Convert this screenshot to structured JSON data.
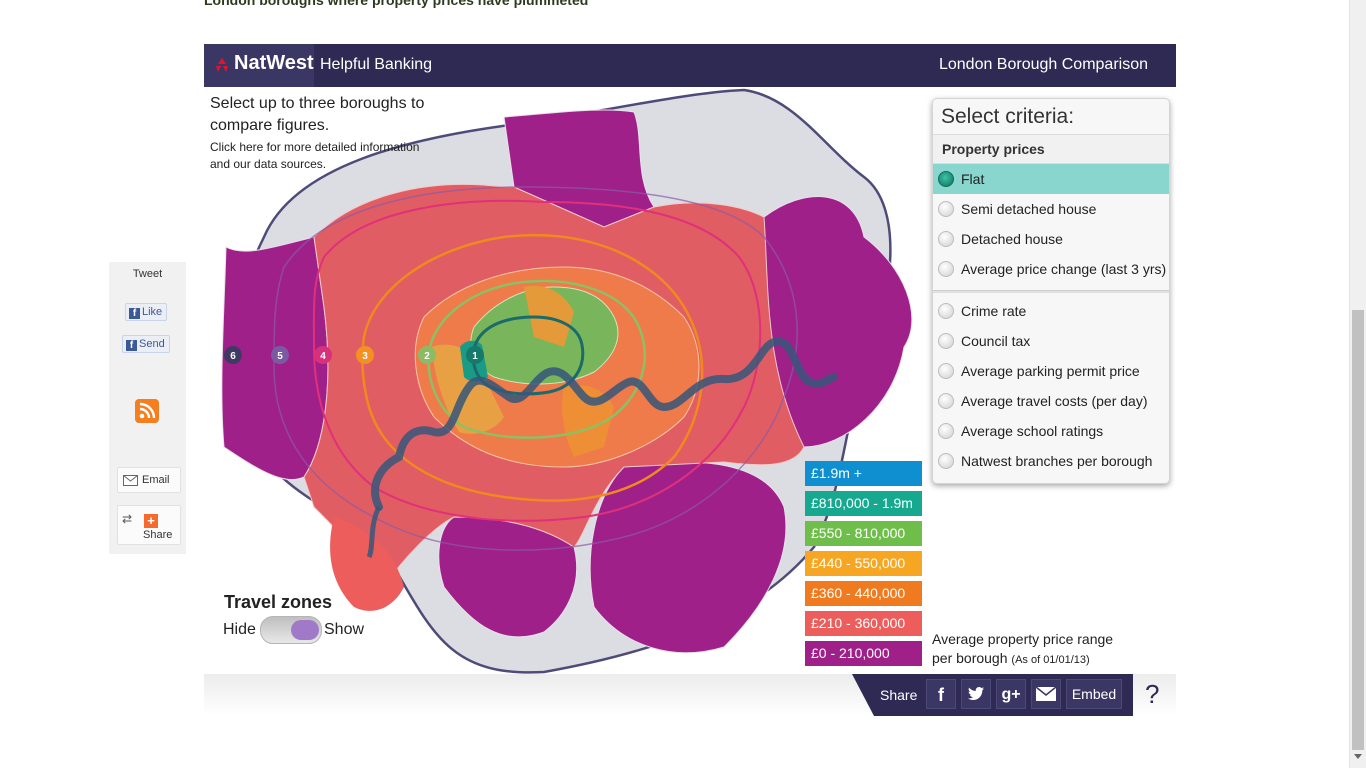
{
  "page": {
    "cut_heading": "London boroughs where property prices have plummeted"
  },
  "social": {
    "tweet": "Tweet",
    "like": "Like",
    "send": "Send",
    "email": "Email",
    "share": "Share"
  },
  "header": {
    "logo": "NatWest",
    "tagline": "Helpful Banking",
    "title": "London Borough Comparison"
  },
  "instructions": {
    "line1": "Select up to three boroughs to",
    "line2": "compare figures.",
    "line3": "Click here for more detailed information",
    "line4": "and our data sources."
  },
  "criteria": {
    "title": "Select criteria:",
    "section": "Property prices",
    "options": [
      {
        "label": "Flat",
        "selected": true
      },
      {
        "label": "Semi detached house",
        "selected": false
      },
      {
        "label": "Detached house",
        "selected": false
      },
      {
        "label": "Average price change (last 3 yrs)",
        "selected": false
      },
      {
        "label": "Crime rate",
        "selected": false
      },
      {
        "label": "Council tax",
        "selected": false
      },
      {
        "label": "Average parking permit price",
        "selected": false
      },
      {
        "label": "Average travel costs (per day)",
        "selected": false
      },
      {
        "label": "Average school ratings",
        "selected": false
      },
      {
        "label": "Natwest branches per borough",
        "selected": false
      }
    ]
  },
  "legend": {
    "items": [
      {
        "label": "£1.9m +",
        "color": "#0f8fd0"
      },
      {
        "label": "£810,000 - 1.9m",
        "color": "#17a98f"
      },
      {
        "label": "£550 - 810,000",
        "color": "#6fbe4b"
      },
      {
        "label": "£440 - 550,000",
        "color": "#f6a623"
      },
      {
        "label": "£360 - 440,000",
        "color": "#f07a1f"
      },
      {
        "label": "£210 - 360,000",
        "color": "#ec5d5c"
      },
      {
        "label": "£0 - 210,000",
        "color": "#a0208a"
      }
    ],
    "caption_line1": "Average property price range",
    "caption_line2": "per borough",
    "caption_note": "(As of 01/01/13)"
  },
  "zones": {
    "title": "Travel zones",
    "hide": "Hide",
    "show": "Show",
    "state": "show",
    "labels": [
      "6",
      "5",
      "4",
      "3",
      "2",
      "1"
    ]
  },
  "footer": {
    "share": "Share",
    "embed": "Embed",
    "help": "?",
    "icons": [
      "facebook-icon",
      "twitter-icon",
      "google-plus-icon",
      "email-icon"
    ]
  }
}
